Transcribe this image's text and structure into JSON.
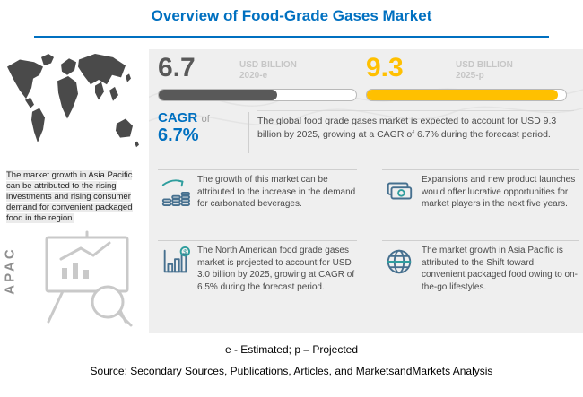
{
  "title": "Overview of Food-Grade Gases Market",
  "left_panel": {
    "region_label": "APAC",
    "text": "The market growth in Asia Pacific can be attributed to the rising investments and rising consumer demand for convenient packaged food in the region."
  },
  "stats": {
    "current": {
      "value": "6.7",
      "unit": "USD BILLION",
      "year": "2020-e",
      "fill": "60%"
    },
    "projected": {
      "value": "9.3",
      "unit": "USD BILLION",
      "year": "2025-p",
      "fill": "96%"
    }
  },
  "cagr": {
    "label": "CAGR",
    "connector": "of",
    "value": "6.7%"
  },
  "summary": "The global food grade gases market is expected to account for USD 9.3 billion by 2025, growing at a CAGR of 6.7% during the forecast period.",
  "bullets": [
    {
      "icon": "coins-growth-icon",
      "text": "The growth of this market can be attributed to the increase in the demand for carbonated beverages."
    },
    {
      "icon": "banknotes-icon",
      "text": "Expansions and new product launches would offer lucrative opportunities for market players in the next five years."
    },
    {
      "icon": "chart-dollar-icon",
      "text": "The North American food grade gases market is projected to account for USD 3.0 billion by 2025, growing at CAGR of 6.5% during the forecast period."
    },
    {
      "icon": "globe-icon",
      "text": "The market growth in Asia Pacific is attributed to the Shift toward convenient packaged food owing to on-the-go lifestyles."
    }
  ],
  "footer": {
    "note": "e - Estimated; p – Projected",
    "source": "Source: Secondary Sources, Publications, Articles, and MarketsandMarkets Analysis"
  },
  "colors": {
    "title_blue": "#0070C0",
    "accent_yellow": "#FFC000",
    "dark_gray": "#595959",
    "panel_gray": "#EFEFEF"
  },
  "chart_data": {
    "type": "bar",
    "categories": [
      "2020-e",
      "2025-p"
    ],
    "values": [
      6.7,
      9.3
    ],
    "unit": "USD Billion",
    "title": "Food-Grade Gases Market Size",
    "annotations": [
      "CAGR 6.7% during forecast period",
      "North America projected USD 3.0 billion by 2025 at CAGR 6.5%"
    ]
  }
}
